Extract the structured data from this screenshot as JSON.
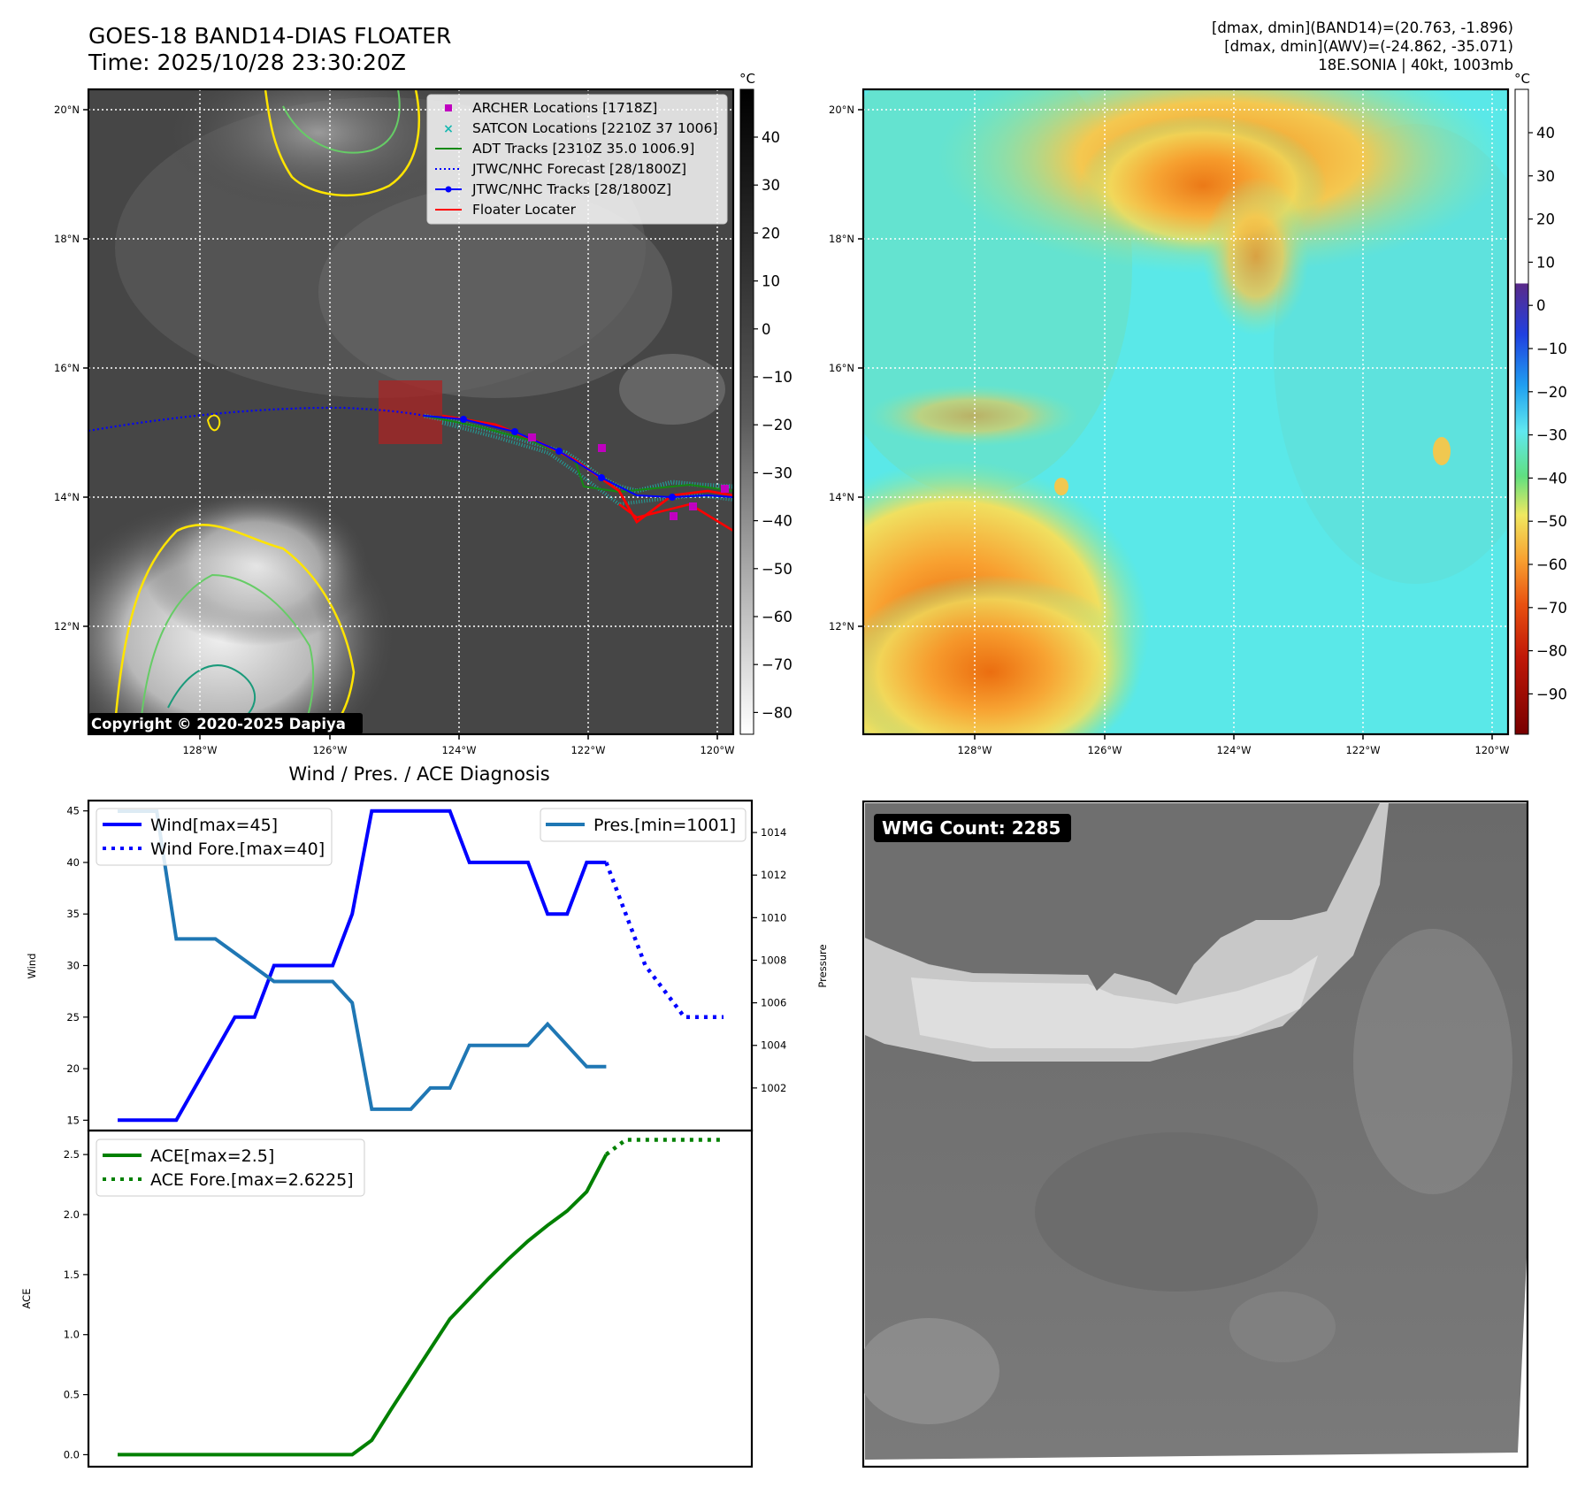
{
  "header": {
    "title_line1": "GOES-18 BAND14-DIAS FLOATER",
    "title_line2": "Time: 2025/10/28 23:30:20Z",
    "info_line1": "[dmax, dmin](BAND14)=(20.763, -1.896)",
    "info_line2": "[dmax, dmin](AWV)=(-24.862, -35.071)",
    "info_line3": "18E.SONIA | 40kt, 1003mb"
  },
  "ir_map": {
    "lon_ticks": [
      "128°W",
      "126°W",
      "124°W",
      "122°W",
      "120°W"
    ],
    "lat_ticks": [
      "20°N",
      "18°N",
      "16°N",
      "14°N",
      "12°N"
    ],
    "colorbar_unit": "°C",
    "colorbar_ticks": [
      "40",
      "30",
      "20",
      "10",
      "0",
      "−10",
      "−20",
      "−30",
      "−40",
      "−50",
      "−60",
      "−70",
      "−80"
    ],
    "copyright": "Copyright © 2020-2025 Dapiya",
    "legend": [
      {
        "label": "ARCHER Locations [1718Z]",
        "color": "#c000c0",
        "style": "square"
      },
      {
        "label": "SATCON Locations [2210Z 37 1006]",
        "color": "#18b8b0",
        "style": "x"
      },
      {
        "label": "ADT Tracks [2310Z 35.0 1006.9]",
        "color": "#138a13",
        "style": "line"
      },
      {
        "label": "JTWC/NHC Forecast [28/1800Z]",
        "color": "#0000ff",
        "style": "dotted"
      },
      {
        "label": "JTWC/NHC Tracks [28/1800Z]",
        "color": "#0000ff",
        "style": "line-dot"
      },
      {
        "label": "Floater Locater",
        "color": "#ff0000",
        "style": "line"
      }
    ]
  },
  "awv_map": {
    "lon_ticks": [
      "128°W",
      "126°W",
      "124°W",
      "122°W",
      "120°W"
    ],
    "lat_ticks": [
      "20°N",
      "18°N",
      "16°N",
      "14°N",
      "12°N"
    ],
    "colorbar_unit": "°C",
    "colorbar_ticks": [
      "40",
      "30",
      "20",
      "10",
      "0",
      "−10",
      "−20",
      "−30",
      "−40",
      "−50",
      "−60",
      "−70",
      "−80",
      "−90"
    ]
  },
  "wmg": {
    "label": "WMG Count: 2285"
  },
  "chart_data": [
    {
      "type": "line",
      "title": "Wind / Pres. / ACE Diagnosis",
      "ylabel": "Wind",
      "ylabel_right": "Pressure",
      "ylim": [
        14,
        46
      ],
      "ylim_right": [
        1000.0,
        1015.5
      ],
      "yticks": [
        15,
        20,
        25,
        30,
        35,
        40,
        45
      ],
      "yticks_right": [
        1002,
        1004,
        1006,
        1008,
        1010,
        1012,
        1014
      ],
      "legend_left": [
        "Wind[max=45]",
        "Wind Fore.[max=40]"
      ],
      "legend_right": [
        "Pres.[min=1001]"
      ],
      "series": [
        {
          "name": "Wind[max=45]",
          "color": "#0000ff",
          "style": "solid",
          "axis": "left",
          "x": [
            0,
            3,
            6,
            7,
            8,
            9,
            10,
            11,
            12,
            13,
            14,
            15,
            16,
            17,
            18,
            19,
            20,
            21,
            22,
            23,
            24,
            25
          ],
          "y": [
            15,
            15,
            25,
            25,
            30,
            30,
            30,
            30,
            35,
            45,
            45,
            45,
            45,
            45,
            40,
            40,
            40,
            40,
            35,
            35,
            40,
            40
          ]
        },
        {
          "name": "Wind Fore.[max=40]",
          "color": "#0000ff",
          "style": "dotted",
          "axis": "left",
          "x": [
            25,
            26,
            27,
            28,
            29,
            30,
            31
          ],
          "y": [
            40,
            35,
            30,
            27.5,
            25,
            25,
            25
          ]
        },
        {
          "name": "Pres.[min=1001]",
          "color": "#1f77b4",
          "style": "solid",
          "axis": "right",
          "x": [
            0,
            2,
            3,
            5,
            8,
            10,
            11,
            12,
            13,
            14,
            15,
            16,
            17,
            18,
            19,
            20,
            21,
            22,
            23,
            24,
            25
          ],
          "y": [
            1015,
            1015,
            1009,
            1009,
            1007,
            1007,
            1007,
            1006,
            1001,
            1001,
            1001,
            1002,
            1002,
            1004,
            1004,
            1004,
            1004,
            1005,
            1004,
            1003,
            1003
          ]
        }
      ]
    },
    {
      "type": "line",
      "ylabel": "ACE",
      "ylim": [
        -0.1,
        2.7
      ],
      "yticks": [
        0.0,
        0.5,
        1.0,
        1.5,
        2.0,
        2.5
      ],
      "ytick_labels": [
        "0.0",
        "0.5",
        "1.0",
        "1.5",
        "2.0",
        "2.5"
      ],
      "legend": [
        "ACE[max=2.5]",
        "ACE Fore.[max=2.6225]"
      ],
      "series": [
        {
          "name": "ACE[max=2.5]",
          "color": "#008000",
          "style": "solid",
          "x": [
            0,
            5,
            10,
            11,
            12,
            13,
            14,
            15,
            16,
            17,
            18,
            19,
            20,
            21,
            22,
            23,
            24,
            25
          ],
          "y": [
            0,
            0,
            0,
            0,
            0,
            0.12,
            0.38,
            0.63,
            0.88,
            1.13,
            1.3,
            1.47,
            1.63,
            1.78,
            1.91,
            2.03,
            2.19,
            2.5
          ]
        },
        {
          "name": "ACE Fore.[max=2.6225]",
          "color": "#008000",
          "style": "dotted",
          "x": [
            25,
            26,
            28,
            30,
            31
          ],
          "y": [
            2.5,
            2.6225,
            2.6225,
            2.6225,
            2.6225
          ]
        }
      ]
    }
  ]
}
